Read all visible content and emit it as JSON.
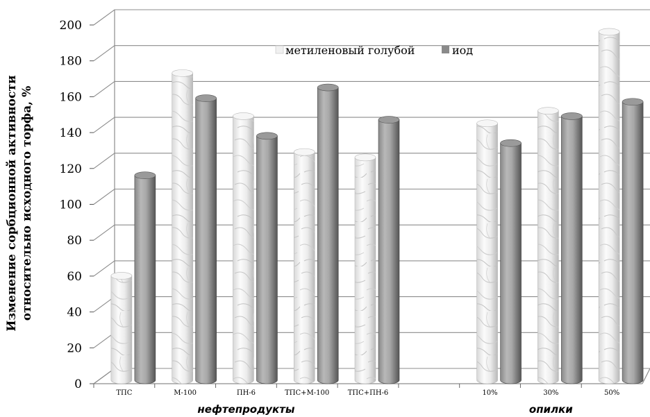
{
  "chart_data": {
    "type": "bar",
    "categories": [
      "ТПС",
      "М-100",
      "ПН-6",
      "ТПС+М-100",
      "ТПС+ПН-6",
      "",
      "10%",
      "30%",
      "50%"
    ],
    "series": [
      {
        "name": "метиленовый голубой",
        "values": [
          59,
          172,
          148,
          128,
          125,
          null,
          144,
          151,
          195
        ]
      },
      {
        "name": "иод",
        "values": [
          115,
          158,
          137,
          164,
          146,
          null,
          133,
          148,
          156
        ]
      }
    ],
    "groups": [
      {
        "label": "нефтепродукты",
        "categories": [
          "ТПС",
          "М-100",
          "ПН-6",
          "ТПС+М-100",
          "ТПС+ПН-6"
        ]
      },
      {
        "label": "опилки",
        "categories": [
          "10%",
          "30%",
          "50%"
        ]
      }
    ],
    "ylabel_lines": [
      "Изменение сорбционной активности",
      "относительно исходного торфа, %"
    ],
    "ylim": [
      0,
      200
    ],
    "ytick_step": 20,
    "grid": true,
    "legend_position": "top-center",
    "colors": {
      "metylene_top": "#f6f6f6",
      "metylene_edge": "#b8b8b8",
      "iod_light": "#b4b4b4",
      "iod_dark": "#5c5c5c",
      "grid": "#8c8c8c"
    }
  }
}
